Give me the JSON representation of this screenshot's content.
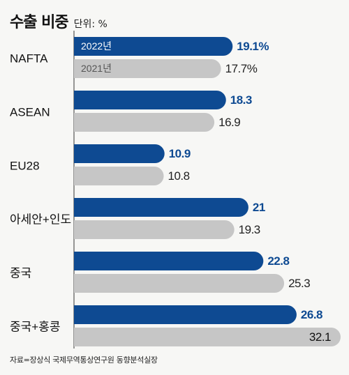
{
  "header": {
    "title": "수출 비중",
    "unit": "단위: %"
  },
  "chart_data": {
    "type": "bar",
    "orientation": "horizontal",
    "categories": [
      "NAFTA",
      "ASEAN",
      "EU28",
      "아세안+인도",
      "중국",
      "중국+홍콩"
    ],
    "series": [
      {
        "name": "2022년",
        "values": [
          19.1,
          18.3,
          10.9,
          21,
          22.8,
          26.8
        ],
        "labels": [
          "19.1%",
          "18.3",
          "10.9",
          "21",
          "22.8",
          "26.8"
        ],
        "color": "#0e4a92"
      },
      {
        "name": "2021년",
        "values": [
          17.7,
          16.9,
          10.8,
          19.3,
          25.3,
          32.1
        ],
        "labels": [
          "17.7%",
          "16.9",
          "10.8",
          "19.3",
          "25.3",
          "32.1"
        ],
        "color": "#c6c6c6"
      }
    ],
    "xlim": [
      0,
      32.1
    ]
  },
  "source": "자료=장상식 국제무역통상연구원 동향분석실장"
}
